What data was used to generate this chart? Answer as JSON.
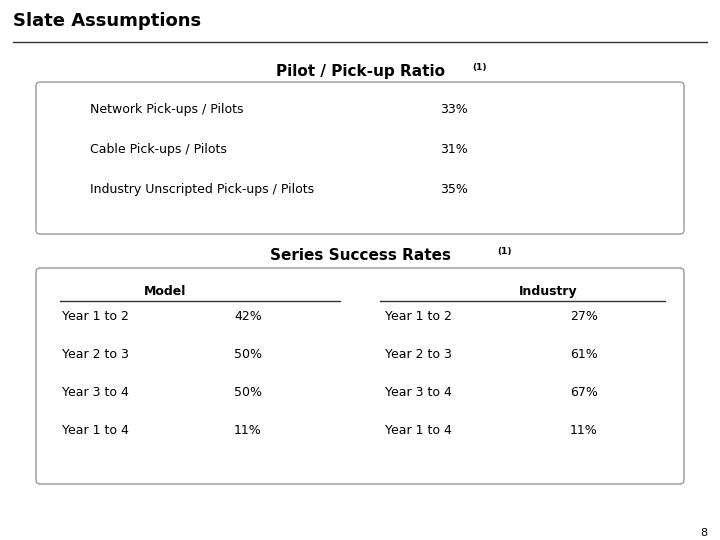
{
  "title": "Slate Assumptions",
  "section1_title": "Pilot / Pick-up Ratio",
  "section1_superscript": "(1)",
  "section1_rows": [
    [
      "Network Pick-ups / Pilots",
      "33%"
    ],
    [
      "Cable Pick-ups / Pilots",
      "31%"
    ],
    [
      "Industry Unscripted Pick-ups / Pilots",
      "35%"
    ]
  ],
  "section2_title": "Series Success Rates",
  "section2_superscript": "(1)",
  "section2_col1_header": "Model",
  "section2_col2_header": "Industry",
  "section2_model_rows": [
    [
      "Year 1 to 2",
      "42%"
    ],
    [
      "Year 2 to 3",
      "50%"
    ],
    [
      "Year 3 to 4",
      "50%"
    ],
    [
      "Year 1 to 4",
      "11%"
    ]
  ],
  "section2_industry_rows": [
    [
      "Year 1 to 2",
      "27%"
    ],
    [
      "Year 2 to 3",
      "61%"
    ],
    [
      "Year 3 to 4",
      "67%"
    ],
    [
      "Year 1 to 4",
      "11%"
    ]
  ],
  "bg_color": "#ffffff",
  "title_color": "#000000",
  "text_color": "#000000",
  "box_edge_color": "#999999",
  "page_number": "8",
  "title_fontsize": 13,
  "section_title_fontsize": 11,
  "body_fontsize": 9,
  "sup_fontsize": 6.5
}
